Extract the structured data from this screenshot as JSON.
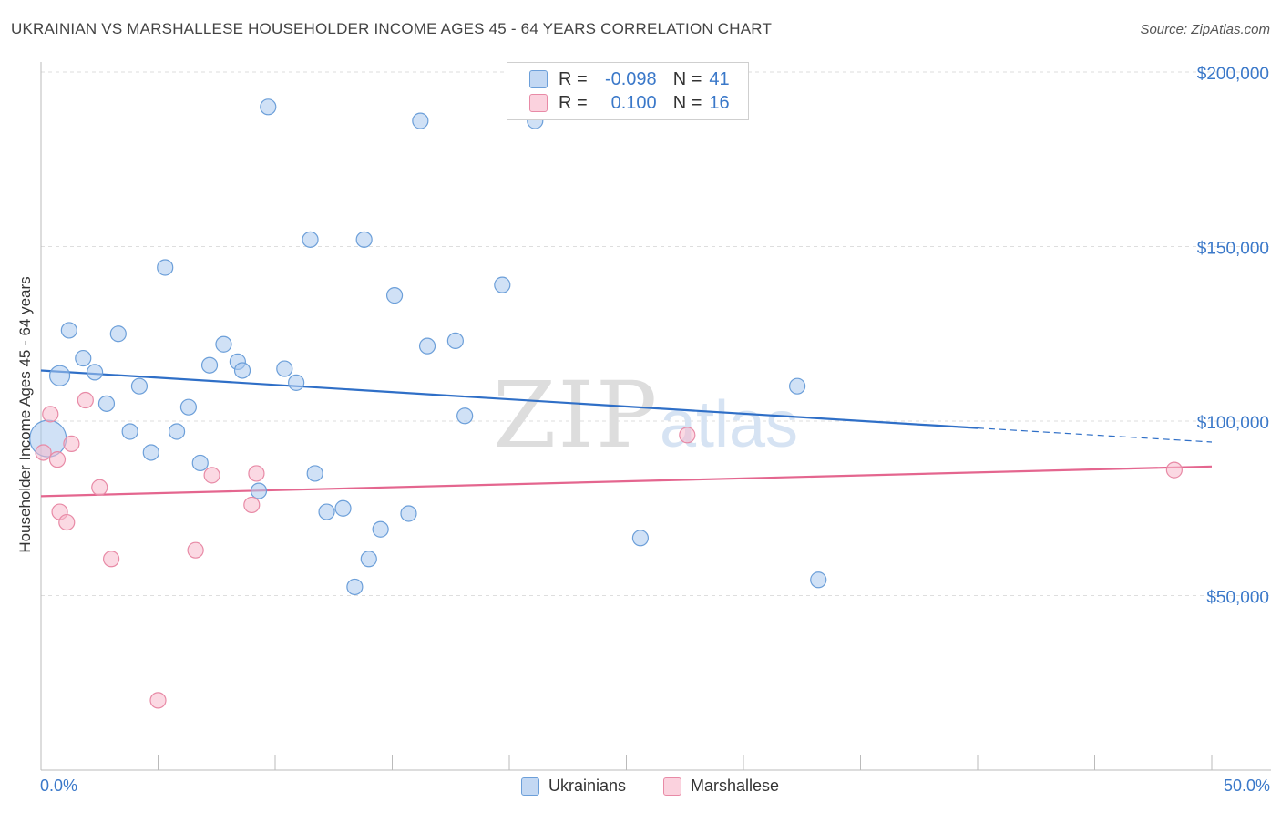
{
  "header": {
    "title": "UKRAINIAN VS MARSHALLESE HOUSEHOLDER INCOME AGES 45 - 64 YEARS CORRELATION CHART",
    "source": "Source: ZipAtlas.com"
  },
  "legend": {
    "r_label": "R =",
    "n_label": "N =",
    "rows": [
      {
        "r": "-0.098",
        "n": "41",
        "color": "#a9c8ef"
      },
      {
        "r": "0.100",
        "n": "16",
        "color": "#f7b9cc"
      }
    ]
  },
  "watermark": {
    "zip": "ZIP",
    "atlas": "atlas"
  },
  "chart_data": {
    "type": "scatter",
    "title": "UKRAINIAN VS MARSHALLESE HOUSEHOLDER INCOME AGES 45 - 64 YEARS CORRELATION CHART",
    "xlabel": "",
    "ylabel": "Householder Income Ages 45 - 64 years",
    "xlim": [
      0,
      50
    ],
    "ylim": [
      0,
      210000
    ],
    "x_tick_labels": [
      "0.0%",
      "50.0%"
    ],
    "y_ticks": [
      {
        "value": 50000,
        "label": "$50,000"
      },
      {
        "value": 100000,
        "label": "$100,000"
      },
      {
        "value": 150000,
        "label": "$150,000"
      },
      {
        "value": 200000,
        "label": "$200,000"
      }
    ],
    "series": [
      {
        "name": "Ukrainians",
        "color": "#a9c8ef",
        "stroke": "#6c9fd9",
        "trend": {
          "x0": 0,
          "y0": 114500,
          "x1": 40,
          "y1": 98000,
          "dash_to_x": 50,
          "dash_to_y": 94000,
          "color": "#2f6fc7"
        },
        "points": [
          [
            0.3,
            95000,
            "large"
          ],
          [
            0.8,
            113000,
            "mid"
          ],
          [
            1.2,
            126000
          ],
          [
            1.8,
            118000
          ],
          [
            2.3,
            114000
          ],
          [
            2.8,
            105000
          ],
          [
            3.3,
            125000
          ],
          [
            3.8,
            97000
          ],
          [
            4.2,
            110000
          ],
          [
            4.7,
            91000
          ],
          [
            5.3,
            144000
          ],
          [
            5.8,
            97000
          ],
          [
            6.3,
            104000
          ],
          [
            6.8,
            88000
          ],
          [
            7.2,
            116000
          ],
          [
            7.8,
            122000
          ],
          [
            8.4,
            117000
          ],
          [
            8.6,
            114500
          ],
          [
            9.3,
            80000
          ],
          [
            9.7,
            190000
          ],
          [
            10.4,
            115000
          ],
          [
            10.9,
            111000
          ],
          [
            11.5,
            152000
          ],
          [
            11.7,
            85000
          ],
          [
            12.2,
            74000
          ],
          [
            12.9,
            75000
          ],
          [
            13.4,
            52500
          ],
          [
            13.8,
            152000
          ],
          [
            14.0,
            60500
          ],
          [
            14.5,
            69000
          ],
          [
            15.1,
            136000
          ],
          [
            15.7,
            73500
          ],
          [
            16.2,
            186000
          ],
          [
            16.5,
            121500
          ],
          [
            17.7,
            123000
          ],
          [
            18.1,
            101500
          ],
          [
            19.7,
            139000
          ],
          [
            21.1,
            186000
          ],
          [
            25.6,
            66500
          ],
          [
            32.3,
            110000
          ],
          [
            33.2,
            54500
          ]
        ]
      },
      {
        "name": "Marshallese",
        "color": "#f7b9cc",
        "stroke": "#e88aa6",
        "trend": {
          "x0": 0,
          "y0": 78500,
          "x1": 50,
          "y1": 87000,
          "color": "#e4668f"
        },
        "points": [
          [
            0.1,
            91000
          ],
          [
            0.4,
            102000
          ],
          [
            0.7,
            89000
          ],
          [
            0.8,
            74000
          ],
          [
            1.1,
            71000
          ],
          [
            1.3,
            93500
          ],
          [
            1.9,
            106000
          ],
          [
            2.5,
            81000
          ],
          [
            3.0,
            60500
          ],
          [
            5.0,
            20000
          ],
          [
            6.6,
            63000
          ],
          [
            7.3,
            84500
          ],
          [
            9.0,
            76000
          ],
          [
            9.2,
            85000
          ],
          [
            27.6,
            96000
          ],
          [
            48.4,
            86000
          ]
        ]
      }
    ],
    "legend_labels": [
      "Ukrainians",
      "Marshallese"
    ]
  }
}
